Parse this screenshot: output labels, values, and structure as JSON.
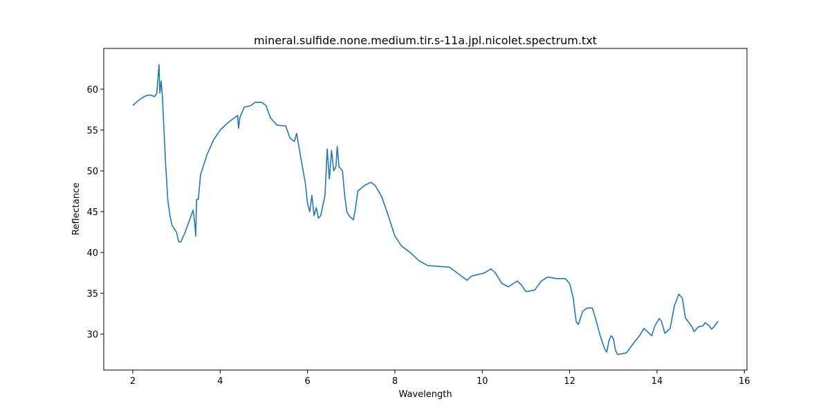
{
  "chart_data": {
    "type": "line",
    "title": "mineral.sulfide.none.medium.tir.s-11a.jpl.nicolet.spectrum.txt",
    "x_label": "Wavelength",
    "y_label": "Reflectance",
    "xlim": [
      1.335,
      16.06
    ],
    "ylim": [
      25.6,
      65.0
    ],
    "xticks": [
      2,
      4,
      6,
      8,
      10,
      12,
      14,
      16
    ],
    "yticks": [
      30,
      35,
      40,
      45,
      50,
      55,
      60
    ],
    "grid": false,
    "series": [
      {
        "name": "spectrum",
        "color": "#1f77b4",
        "x": [
          2.0,
          2.1,
          2.2,
          2.3,
          2.4,
          2.5,
          2.55,
          2.6,
          2.62,
          2.65,
          2.68,
          2.7,
          2.75,
          2.8,
          2.85,
          2.9,
          3.0,
          3.05,
          3.1,
          3.2,
          3.3,
          3.38,
          3.42,
          3.44,
          3.46,
          3.5,
          3.55,
          3.7,
          3.85,
          4.0,
          4.2,
          4.4,
          4.42,
          4.45,
          4.55,
          4.7,
          4.8,
          4.95,
          5.05,
          5.15,
          5.3,
          5.5,
          5.6,
          5.7,
          5.75,
          5.85,
          5.95,
          6.0,
          6.05,
          6.1,
          6.15,
          6.2,
          6.25,
          6.3,
          6.4,
          6.45,
          6.5,
          6.55,
          6.6,
          6.65,
          6.68,
          6.72,
          6.8,
          6.85,
          6.9,
          6.95,
          7.05,
          7.1,
          7.15,
          7.3,
          7.45,
          7.55,
          7.7,
          7.85,
          8.0,
          8.15,
          8.35,
          8.55,
          8.75,
          9.0,
          9.25,
          9.5,
          9.65,
          9.75,
          9.9,
          10.05,
          10.2,
          10.3,
          10.45,
          10.6,
          10.8,
          10.9,
          11.0,
          11.2,
          11.35,
          11.5,
          11.7,
          11.9,
          12.0,
          12.08,
          12.15,
          12.2,
          12.3,
          12.4,
          12.52,
          12.6,
          12.7,
          12.8,
          12.85,
          12.9,
          12.95,
          13.0,
          13.05,
          13.1,
          13.3,
          13.45,
          13.6,
          13.7,
          13.8,
          13.88,
          13.95,
          14.05,
          14.1,
          14.18,
          14.3,
          14.4,
          14.5,
          14.58,
          14.65,
          14.8,
          14.85,
          14.95,
          15.05,
          15.1,
          15.2,
          15.25,
          15.32,
          15.4
        ],
        "values": [
          58.0,
          58.5,
          58.9,
          59.2,
          59.3,
          59.1,
          59.5,
          63.0,
          59.5,
          61.0,
          59.0,
          56.5,
          51,
          46.5,
          44.5,
          43.3,
          42.5,
          41.3,
          41.3,
          42.5,
          44.0,
          45.2,
          43.5,
          42.0,
          46.5,
          46.5,
          49.5,
          52,
          53.8,
          55,
          56.0,
          56.8,
          55.2,
          56.5,
          57.8,
          58.0,
          58.4,
          58.4,
          58.0,
          56.5,
          55.6,
          55.5,
          54,
          53.6,
          54.6,
          51.5,
          48.5,
          46,
          45,
          47,
          44.5,
          45.5,
          44.2,
          44.5,
          47,
          52.7,
          49,
          52.5,
          50,
          50.5,
          53,
          50.5,
          50,
          47,
          45,
          44.5,
          44,
          45.5,
          47.5,
          48.2,
          48.6,
          48.2,
          46.8,
          44.5,
          42.0,
          40.8,
          40.0,
          39,
          38.4,
          38.3,
          38.2,
          37.2,
          36.6,
          37.1,
          37.3,
          37.5,
          38.0,
          37.5,
          36.2,
          35.8,
          36.5,
          36.0,
          35.2,
          35.4,
          36.5,
          37.0,
          36.8,
          36.8,
          36.2,
          34.5,
          31.5,
          31.2,
          32.8,
          33.2,
          33.2,
          31.8,
          29.8,
          28.2,
          27.8,
          29.2,
          29.8,
          29.5,
          28.0,
          27.5,
          27.7,
          28.8,
          29.8,
          30.7,
          30.2,
          29.8,
          31.0,
          31.9,
          31.6,
          30.1,
          30.7,
          33.5,
          34.9,
          34.4,
          32.0,
          30.9,
          30.3,
          30.9,
          31.0,
          31.4,
          31.0,
          30.6,
          31.0,
          31.6
        ]
      }
    ]
  }
}
